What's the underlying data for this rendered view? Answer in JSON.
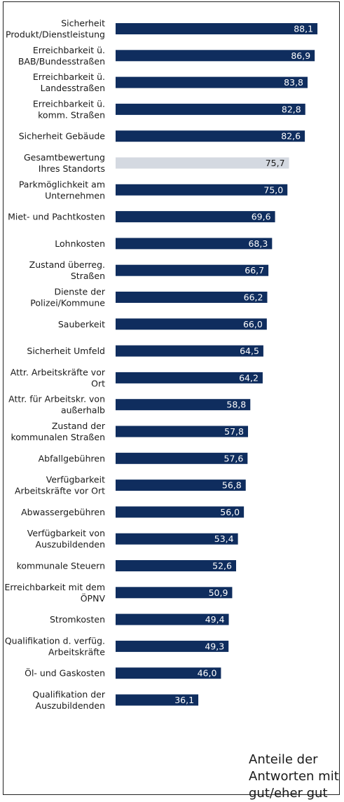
{
  "chart_data": {
    "type": "bar",
    "orientation": "horizontal",
    "categories": [
      [
        "Sicherheit",
        "Produkt/Dienstleistung"
      ],
      [
        "Erreichbarkeit ü.",
        "BAB/Bundesstraßen"
      ],
      [
        "Erreichbarkeit ü.",
        "Landesstraßen"
      ],
      [
        "Erreichbarkeit ü.",
        "komm. Straßen"
      ],
      [
        "Sicherheit Gebäude"
      ],
      [
        "Gesamtbewertung",
        "Ihres Standorts"
      ],
      [
        "Parkmöglichkeit am",
        "Unternehmen"
      ],
      [
        "Miet- und Pachtkosten"
      ],
      [
        "Lohnkosten"
      ],
      [
        "Zustand überreg.",
        "Straßen"
      ],
      [
        "Dienste der",
        "Polizei/Kommune"
      ],
      [
        "Sauberkeit"
      ],
      [
        "Sicherheit Umfeld"
      ],
      [
        "Attr. Arbeitskräfte vor",
        "Ort"
      ],
      [
        "Attr. für Arbeitskr. von",
        "außerhalb"
      ],
      [
        "Zustand der",
        "kommunalen Straßen"
      ],
      [
        "Abfallgebühren"
      ],
      [
        "Verfügbarkeit",
        "Arbeitskräfte vor Ort"
      ],
      [
        "Abwassergebühren"
      ],
      [
        "Verfügbarkeit von",
        "Auszubildenden"
      ],
      [
        "kommunale Steuern"
      ],
      [
        "Erreichbarkeit mit dem",
        "ÖPNV"
      ],
      [
        "Stromkosten"
      ],
      [
        "Qualifikation d. verfüg.",
        "Arbeitskräfte"
      ],
      [
        "Öl- und Gaskosten"
      ],
      [
        "Qualifikation der",
        "Auszubildenden"
      ]
    ],
    "values": [
      88.1,
      86.9,
      83.8,
      82.8,
      82.6,
      75.7,
      75.0,
      69.6,
      68.3,
      66.7,
      66.2,
      66.0,
      64.5,
      64.2,
      58.8,
      57.8,
      57.6,
      56.8,
      56.0,
      53.4,
      52.6,
      50.9,
      49.4,
      49.3,
      46.0,
      36.1
    ],
    "value_labels": [
      "88,1",
      "86,9",
      "83,8",
      "82,8",
      "82,6",
      "75,7",
      "75,0",
      "69,6",
      "68,3",
      "66,7",
      "66,2",
      "66,0",
      "64,5",
      "64,2",
      "58,8",
      "57,8",
      "57,6",
      "56,8",
      "56,0",
      "53,4",
      "52,6",
      "50,9",
      "49,4",
      "49,3",
      "46,0",
      "36,1"
    ],
    "highlight_index": 5,
    "colors": {
      "bar": "#0f2d5e",
      "highlight": "#d4d9e1"
    },
    "xlim": [
      0,
      100
    ],
    "grid": false,
    "legend": "none"
  },
  "note": [
    "Anteile der",
    "Antworten mit",
    "gut/eher gut"
  ]
}
